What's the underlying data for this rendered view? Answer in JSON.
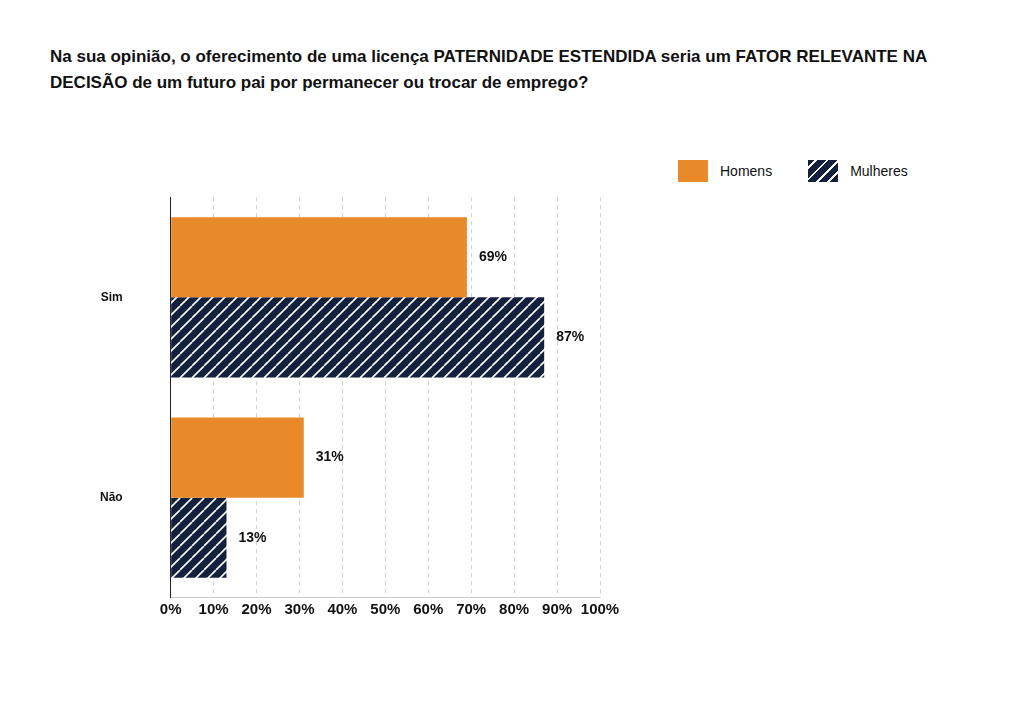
{
  "chart_data": {
    "type": "bar",
    "orientation": "horizontal",
    "title": "Na sua opinião, o oferecimento de uma licença PATERNIDADE ESTENDIDA seria um FATOR RELEVANTE NA DECISÃO de um futuro pai por permanecer ou trocar de emprego?",
    "categories": [
      "Sim",
      "Não"
    ],
    "series": [
      {
        "name": "Homens",
        "color": "#e8892a",
        "values": [
          69,
          31
        ],
        "value_labels": [
          "69%",
          "31%"
        ]
      },
      {
        "name": "Mulheres",
        "color": "#14213d",
        "values": [
          87,
          13
        ],
        "value_labels": [
          "87%",
          "13%"
        ]
      }
    ],
    "xlim": [
      0,
      100
    ],
    "xticks": [
      {
        "value": 0,
        "label": "0%"
      },
      {
        "value": 10,
        "label": "10%"
      },
      {
        "value": 20,
        "label": "20%"
      },
      {
        "value": 30,
        "label": "30%"
      },
      {
        "value": 40,
        "label": "40%"
      },
      {
        "value": 50,
        "label": "50%"
      },
      {
        "value": 60,
        "label": "60%"
      },
      {
        "value": 70,
        "label": "70%"
      },
      {
        "value": 80,
        "label": "80%"
      },
      {
        "value": 90,
        "label": "90%"
      },
      {
        "value": 100,
        "label": "100%"
      }
    ],
    "grid": true,
    "legend": "right",
    "data_labels": true
  }
}
